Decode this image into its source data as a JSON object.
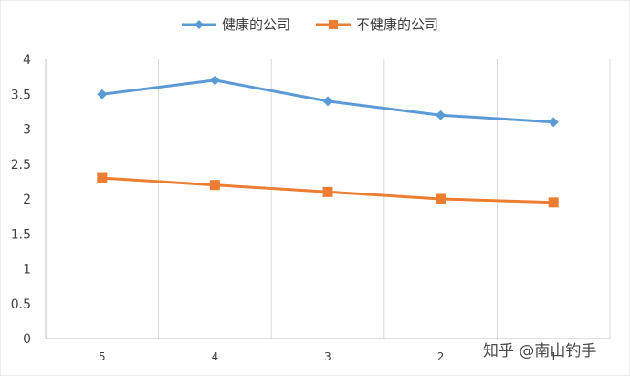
{
  "chart_data": {
    "type": "line",
    "categories": [
      "5",
      "4",
      "3",
      "2",
      "1"
    ],
    "y_ticks": [
      "0",
      "0.5",
      "1",
      "1.5",
      "2",
      "2.5",
      "3",
      "3.5",
      "4"
    ],
    "ylim": [
      0,
      4
    ],
    "grid": "vertical",
    "legend_position": "top",
    "series": [
      {
        "name": "健康的公司",
        "values": [
          3.5,
          3.7,
          3.4,
          3.2,
          3.1
        ],
        "color": "#5b9bd5",
        "marker": "diamond"
      },
      {
        "name": "不健康的公司",
        "values": [
          2.3,
          2.2,
          2.1,
          2.0,
          1.95
        ],
        "color": "#ed7d31",
        "marker": "square"
      }
    ]
  },
  "watermark": "知乎 @南山钓手"
}
